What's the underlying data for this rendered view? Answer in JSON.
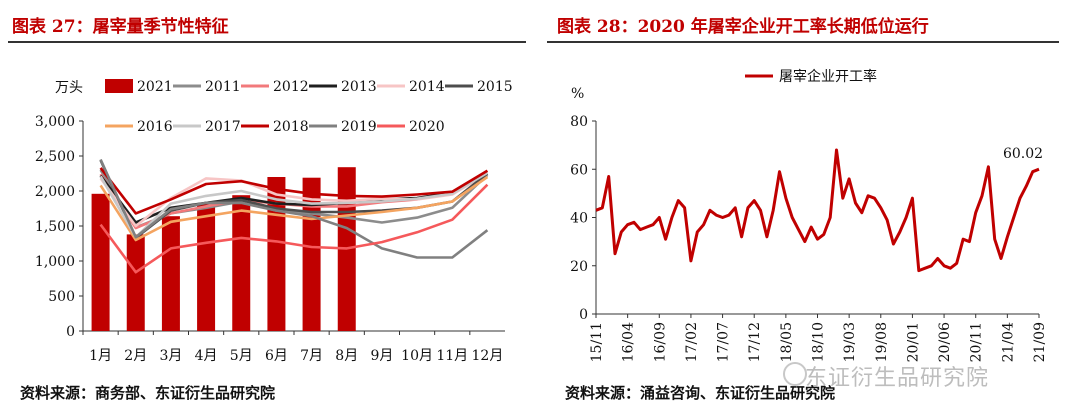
{
  "figures": [
    {
      "title": "图表 27：屠宰量季节性特征",
      "source": "资料来源：商务部、东证衍生品研究院",
      "chart_data": {
        "type": "bar",
        "ylabel": "万头",
        "ylim": [
          0,
          3000
        ],
        "yticks": [
          "0",
          "500",
          "1,000",
          "1,500",
          "2,000",
          "2,500",
          "3,000"
        ],
        "categories": [
          "1月",
          "2月",
          "3月",
          "4月",
          "5月",
          "6月",
          "7月",
          "8月",
          "9月",
          "10月",
          "11月",
          "12月"
        ],
        "bar_series": {
          "name": "2021",
          "color": "#c00000",
          "values": [
            1960,
            1380,
            1640,
            1810,
            1940,
            2200,
            2190,
            2340,
            null,
            null,
            null,
            null
          ]
        },
        "line_series": [
          {
            "name": "2011",
            "color": "#8c8c8c",
            "values": [
              2300,
              1480,
              1680,
              1760,
              1850,
              1720,
              1680,
              1620,
              1550,
              1620,
              1760,
              2230
            ]
          },
          {
            "name": "2012",
            "color": "#f2797b",
            "values": [
              2240,
              1470,
              1680,
              1780,
              1870,
              1820,
              1780,
              1780,
              1840,
              1880,
              1990,
              2290
            ]
          },
          {
            "name": "2013",
            "color": "#1f1f1f",
            "values": [
              2220,
              1550,
              1760,
              1830,
              1900,
              1820,
              1800,
              1830,
              1880,
              1900,
              1980,
              2250
            ]
          },
          {
            "name": "2014",
            "color": "#f7c5c5",
            "values": [
              2180,
              1500,
              1900,
              2180,
              2150,
              1950,
              1880,
              1860,
              1890,
              1880,
              1950,
              2250
            ]
          },
          {
            "name": "2015",
            "color": "#4d4d4d",
            "values": [
              2440,
              1330,
              1720,
              1830,
              1870,
              1750,
              1700,
              1700,
              1720,
              1760,
              1850,
              2250
            ]
          },
          {
            "name": "2016",
            "color": "#f4a460",
            "values": [
              2080,
              1300,
              1560,
              1640,
              1720,
              1660,
              1600,
              1650,
              1700,
              1760,
              1850,
              2200
            ]
          },
          {
            "name": "2017",
            "color": "#c8c8c8",
            "values": [
              2210,
              1340,
              1820,
              1930,
              2000,
              1880,
              1820,
              1830,
              1850,
              1890,
              1960,
              2260
            ]
          },
          {
            "name": "2018",
            "color": "#c00000",
            "values": [
              2330,
              1680,
              1880,
              2100,
              2140,
              2030,
              1960,
              1930,
              1920,
              1950,
              1990,
              2290
            ]
          },
          {
            "name": "2019",
            "color": "#808080",
            "values": [
              2450,
              1340,
              1740,
              1830,
              1830,
              1720,
              1640,
              1470,
              1180,
              1050,
              1050,
              1440
            ]
          },
          {
            "name": "2020",
            "color": "#f5595b",
            "values": [
              1520,
              840,
              1180,
              1260,
              1330,
              1280,
              1200,
              1180,
              1270,
              1410,
              1590,
              2090
            ]
          }
        ]
      }
    },
    {
      "title": "图表 28：2020 年屠宰企业开工率长期低位运行",
      "source": "资料来源：涌益咨询、东证衍生品研究院",
      "watermark": "东证衍生品研究院",
      "chart_data": {
        "type": "line",
        "ylabel": "%",
        "ylim": [
          0,
          80
        ],
        "yticks": [
          "0",
          "20",
          "40",
          "60",
          "80"
        ],
        "series_name": "屠宰企业开工率",
        "color": "#c00000",
        "x_range": [
          "15/11",
          "21/09"
        ],
        "xticks": [
          "15/11",
          "16/04",
          "16/09",
          "17/02",
          "17/07",
          "17/12",
          "18/05",
          "18/10",
          "19/03",
          "19/08",
          "20/01",
          "20/06",
          "20/11",
          "21/04",
          "21/09"
        ],
        "annotation": "60.02",
        "values": [
          43,
          44,
          57,
          25,
          34,
          37,
          38,
          35,
          36,
          37,
          40,
          31,
          40,
          47,
          44,
          22,
          34,
          37,
          43,
          41,
          40,
          41,
          44,
          32,
          44,
          47,
          43,
          32,
          43,
          59,
          48,
          40,
          35,
          30,
          36,
          31,
          33,
          40,
          68,
          48,
          56,
          46,
          42,
          49,
          48,
          44,
          39,
          29,
          34,
          40,
          48,
          18,
          19,
          20,
          23,
          20,
          19,
          21,
          31,
          30,
          42,
          49,
          61,
          31,
          23,
          32,
          40,
          48,
          53,
          59,
          60.02
        ]
      }
    }
  ]
}
